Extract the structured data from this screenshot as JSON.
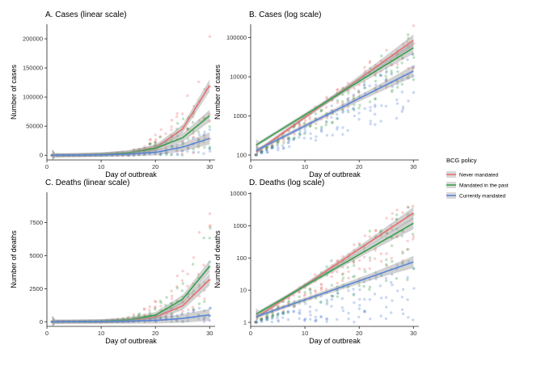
{
  "legend": {
    "title": "BCG policy",
    "position": "right",
    "items": [
      {
        "label": "Never mandated",
        "color": "#e8706e"
      },
      {
        "label": "Mandated in the past",
        "color": "#3aa04a"
      },
      {
        "label": "Currently mandated",
        "color": "#5b86d6"
      }
    ]
  },
  "chart_data": [
    {
      "type": "scatter",
      "title": "A. Cases (linear scale)",
      "xlabel": "Day of outbreak",
      "ylabel": "Number of cases",
      "xlim": [
        0,
        31
      ],
      "ylim": [
        -8000,
        225000
      ],
      "log_y": false,
      "xticks": [
        0,
        10,
        20,
        30
      ],
      "yticks": [
        0,
        50000,
        100000,
        150000,
        200000
      ],
      "ytick_labels": [
        "0",
        "50000",
        "100000",
        "150000",
        "200000"
      ],
      "grid": false,
      "series": [
        {
          "name": "Never mandated",
          "fit": [
            [
              1,
              0
            ],
            [
              5,
              300
            ],
            [
              10,
              1500
            ],
            [
              15,
              4500
            ],
            [
              20,
              13000
            ],
            [
              25,
              45000
            ],
            [
              30,
              120000
            ]
          ]
        },
        {
          "name": "Mandated in the past",
          "fit": [
            [
              1,
              0
            ],
            [
              5,
              300
            ],
            [
              10,
              1300
            ],
            [
              15,
              4000
            ],
            [
              20,
              12000
            ],
            [
              25,
              30000
            ],
            [
              30,
              68000
            ]
          ]
        },
        {
          "name": "Currently mandated",
          "fit": [
            [
              1,
              0
            ],
            [
              5,
              200
            ],
            [
              10,
              800
            ],
            [
              15,
              2000
            ],
            [
              20,
              5000
            ],
            [
              25,
              14000
            ],
            [
              30,
              29000
            ]
          ]
        }
      ],
      "scatter_ranges": [
        {
          "name": "Never mandated",
          "max_at_30": 212000
        },
        {
          "name": "Mandated in the past",
          "max_at_30": 150000
        },
        {
          "name": "Currently mandated",
          "max_at_30": 50000
        }
      ]
    },
    {
      "type": "scatter",
      "title": "B. Cases (log scale)",
      "xlabel": "Day of outbreak",
      "ylabel": "Number of cases",
      "xlim": [
        0,
        31
      ],
      "ylim": [
        75,
        220000
      ],
      "log_y": true,
      "xticks": [
        0,
        10,
        20,
        30
      ],
      "yticks": [
        100,
        1000,
        10000,
        100000
      ],
      "ytick_labels": [
        "100",
        "1000",
        "10000",
        "100000"
      ],
      "grid": false,
      "series": [
        {
          "name": "Never mandated",
          "fit": [
            [
              1,
              120
            ],
            [
              30,
              85000
            ]
          ]
        },
        {
          "name": "Mandated in the past",
          "fit": [
            [
              1,
              180
            ],
            [
              30,
              55000
            ]
          ]
        },
        {
          "name": "Currently mandated",
          "fit": [
            [
              1,
              130
            ],
            [
              30,
              14000
            ]
          ]
        }
      ],
      "scatter_ranges": [
        {
          "name": "Never mandated",
          "low_at_30": 12000,
          "high_at_30": 210000
        },
        {
          "name": "Mandated in the past",
          "low_at_30": 5000,
          "high_at_30": 160000
        },
        {
          "name": "Currently mandated",
          "low_at_30": 800,
          "high_at_30": 50000
        }
      ]
    },
    {
      "type": "scatter",
      "title": "C. Deaths (linear scale)",
      "xlabel": "Day of outbreak",
      "ylabel": "Number of deaths",
      "xlim": [
        0,
        31
      ],
      "ylim": [
        -350,
        9800
      ],
      "log_y": false,
      "xticks": [
        0,
        10,
        20,
        30
      ],
      "yticks": [
        0,
        2500,
        5000,
        7500
      ],
      "ytick_labels": [
        "0",
        "2500",
        "5000",
        "7500"
      ],
      "grid": false,
      "series": [
        {
          "name": "Never mandated",
          "fit": [
            [
              1,
              0
            ],
            [
              10,
              30
            ],
            [
              15,
              100
            ],
            [
              20,
              350
            ],
            [
              25,
              1200
            ],
            [
              30,
              3200
            ]
          ]
        },
        {
          "name": "Mandated in the past",
          "fit": [
            [
              1,
              0
            ],
            [
              10,
              40
            ],
            [
              15,
              150
            ],
            [
              20,
              500
            ],
            [
              25,
              1700
            ],
            [
              30,
              4200
            ]
          ]
        },
        {
          "name": "Currently mandated",
          "fit": [
            [
              1,
              0
            ],
            [
              10,
              10
            ],
            [
              15,
              40
            ],
            [
              20,
              100
            ],
            [
              25,
              250
            ],
            [
              30,
              520
            ]
          ]
        }
      ],
      "scatter_ranges": [
        {
          "name": "Never mandated",
          "max_at_30": 9300
        },
        {
          "name": "Mandated in the past",
          "max_at_30": 7500
        },
        {
          "name": "Currently mandated",
          "max_at_30": 1500
        }
      ]
    },
    {
      "type": "scatter",
      "title": "D. Deaths (log scale)",
      "xlabel": "Day of outbreak",
      "ylabel": "Number of deaths",
      "xlim": [
        0,
        31
      ],
      "ylim": [
        0.75,
        11000
      ],
      "log_y": true,
      "xticks": [
        0,
        10,
        20,
        30
      ],
      "yticks": [
        1,
        10,
        100,
        1000,
        10000
      ],
      "ytick_labels": [
        "1",
        "10",
        "100",
        "1000",
        "10000"
      ],
      "grid": false,
      "series": [
        {
          "name": "Never mandated",
          "fit": [
            [
              1,
              1.4
            ],
            [
              30,
              2500
            ]
          ]
        },
        {
          "name": "Mandated in the past",
          "fit": [
            [
              1,
              1.8
            ],
            [
              30,
              1200
            ]
          ]
        },
        {
          "name": "Currently mandated",
          "fit": [
            [
              1,
              1.5
            ],
            [
              30,
              75
            ]
          ]
        }
      ],
      "scatter_ranges": [
        {
          "name": "Never mandated",
          "low_at_30": 100,
          "high_at_30": 9000
        },
        {
          "name": "Mandated in the past",
          "low_at_30": 20,
          "high_at_30": 10000
        },
        {
          "name": "Currently mandated",
          "low_at_30": 1,
          "high_at_30": 100
        }
      ]
    }
  ]
}
